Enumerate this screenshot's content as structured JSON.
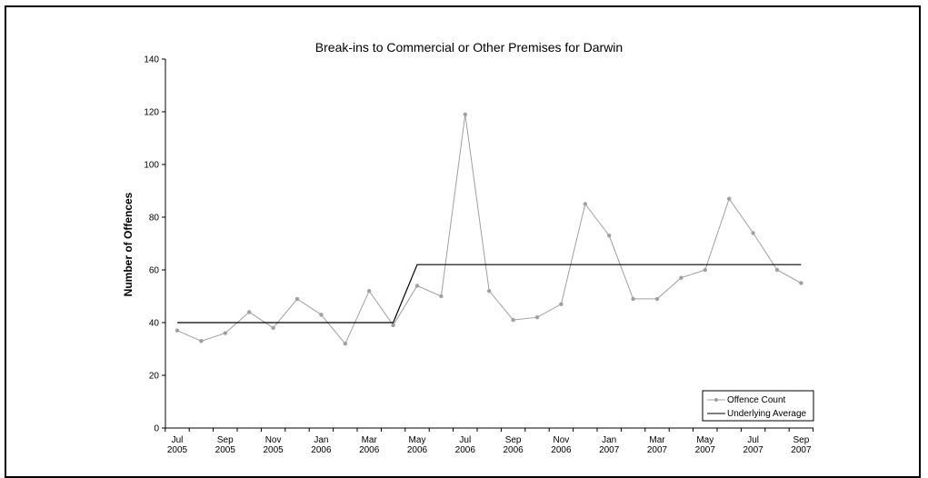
{
  "chart_data": {
    "type": "line",
    "title": "Break-ins to Commercial or Other Premises for Darwin",
    "xlabel": "",
    "ylabel": "Number of Offences",
    "ylim": [
      0,
      140
    ],
    "yticks": [
      0,
      20,
      40,
      60,
      80,
      100,
      120,
      140
    ],
    "grid": false,
    "legend_position": "bottom-right",
    "x": [
      "Jul 2005",
      "Aug 2005",
      "Sep 2005",
      "Oct 2005",
      "Nov 2005",
      "Dec 2005",
      "Jan 2006",
      "Feb 2006",
      "Mar 2006",
      "Apr 2006",
      "May 2006",
      "Jun 2006",
      "Jul 2006",
      "Aug 2006",
      "Sep 2006",
      "Oct 2006",
      "Nov 2006",
      "Dec 2006",
      "Jan 2007",
      "Feb 2007",
      "Mar 2007",
      "Apr 2007",
      "May 2007",
      "Jun 2007",
      "Jul 2007",
      "Aug 2007",
      "Sep 2007"
    ],
    "xtick_labels": [
      {
        "month": "Jul",
        "year": "2005"
      },
      {
        "month": "Sep",
        "year": "2005"
      },
      {
        "month": "Nov",
        "year": "2005"
      },
      {
        "month": "Jan",
        "year": "2006"
      },
      {
        "month": "Mar",
        "year": "2006"
      },
      {
        "month": "May",
        "year": "2006"
      },
      {
        "month": "Jul",
        "year": "2006"
      },
      {
        "month": "Sep",
        "year": "2006"
      },
      {
        "month": "Nov",
        "year": "2006"
      },
      {
        "month": "Jan",
        "year": "2007"
      },
      {
        "month": "Mar",
        "year": "2007"
      },
      {
        "month": "May",
        "year": "2007"
      },
      {
        "month": "Jul",
        "year": "2007"
      },
      {
        "month": "Sep",
        "year": "2007"
      }
    ],
    "series": [
      {
        "name": "Offence Count",
        "color": "#a0a0a0",
        "marker": "circle",
        "values": [
          37,
          33,
          36,
          44,
          38,
          49,
          43,
          32,
          52,
          39,
          54,
          50,
          119,
          52,
          41,
          42,
          47,
          85,
          73,
          49,
          49,
          57,
          60,
          87,
          74,
          60,
          55
        ]
      },
      {
        "name": "Underlying Average",
        "color": "#000000",
        "marker": "none",
        "values": [
          40,
          40,
          40,
          40,
          40,
          40,
          40,
          40,
          40,
          40,
          62,
          62,
          62,
          62,
          62,
          62,
          62,
          62,
          62,
          62,
          62,
          62,
          62,
          62,
          62,
          62,
          62
        ]
      }
    ]
  }
}
